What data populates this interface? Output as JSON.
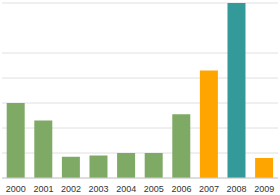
{
  "chart_data": {
    "type": "bar",
    "categories": [
      "2000",
      "2001",
      "2002",
      "2003",
      "2004",
      "2005",
      "2006",
      "2007",
      "2008",
      "2009"
    ],
    "values": [
      3.0,
      2.3,
      0.85,
      0.9,
      1.0,
      1.0,
      2.55,
      4.3,
      7.0,
      0.8
    ],
    "colors": [
      "#7faa65",
      "#7faa65",
      "#7faa65",
      "#7faa65",
      "#7faa65",
      "#7faa65",
      "#7faa65",
      "#ffa500",
      "#339999",
      "#ffa500"
    ],
    "ylim": [
      0,
      7
    ],
    "yticks": [
      0,
      1,
      2,
      3,
      4,
      5,
      6,
      7
    ],
    "grid": true,
    "tick_labels": "x"
  }
}
